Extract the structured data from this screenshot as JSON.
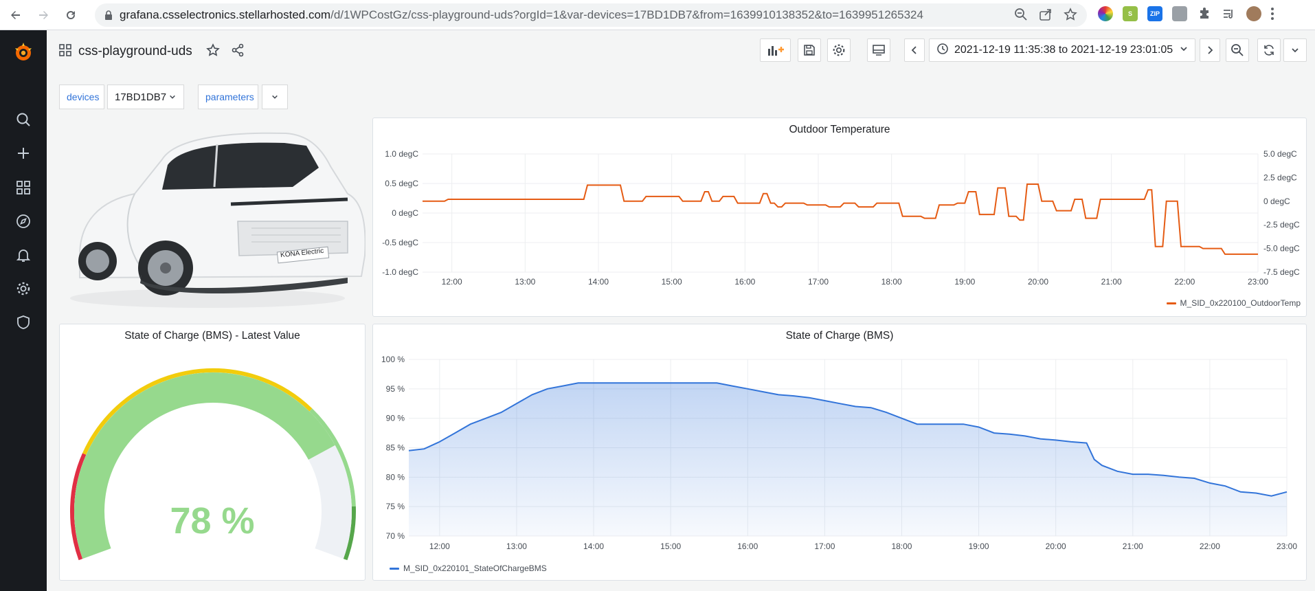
{
  "browser": {
    "url_host": "grafana.csselectronics.stellarhosted.com",
    "url_path": "/d/1WPCostGz/css-playground-uds?orgId=1&var-devices=17BD1DB7&from=1639910138352&to=1639951265324"
  },
  "sidebar": {
    "items": [
      "grafana-logo-icon",
      "search-icon",
      "plus-icon",
      "dashboards-icon",
      "explore-icon",
      "alerting-icon",
      "configuration-icon",
      "shield-icon"
    ]
  },
  "dashboard": {
    "title": "css-playground-uds",
    "time_range": "2021-12-19 11:35:38 to 2021-12-19 23:01:05"
  },
  "variables": {
    "devices_label": "devices",
    "devices_value": "17BD1DB7",
    "parameters_label": "parameters"
  },
  "image_panel": {
    "badge_text": "KONA Electric"
  },
  "colors": {
    "orange": "#e55b13",
    "blue": "#3274d9",
    "green": "#96d98d",
    "yellow": "#f2cc0c",
    "red": "#e02f44",
    "dark_green": "#56a64b"
  },
  "chart_data": [
    {
      "type": "line",
      "title": "Outdoor Temperature",
      "x_ticks": [
        "12:00",
        "13:00",
        "14:00",
        "15:00",
        "16:00",
        "17:00",
        "18:00",
        "19:00",
        "20:00",
        "21:00",
        "22:00",
        "23:00"
      ],
      "y_left_ticks": [
        "1.0 degC",
        "0.5 degC",
        "0 degC",
        "-0.5 degC",
        "-1.0 degC"
      ],
      "y_right_ticks": [
        "5.0 degC",
        "2.5 degC",
        "0 degC",
        "-2.5 degC",
        "-5.0 degC",
        "-7.5 degC"
      ],
      "ylim_right": [
        -7.5,
        5.0
      ],
      "xlim": [
        11.6,
        23.0
      ],
      "series": [
        {
          "name": "M_SID_0x220100_OutdoorTemp",
          "color": "#e55b13",
          "x": [
            11.6,
            11.9,
            11.95,
            12.1,
            13.8,
            13.85,
            14.3,
            14.35,
            14.6,
            14.65,
            15.1,
            15.15,
            15.4,
            15.45,
            15.5,
            15.55,
            15.65,
            15.7,
            15.85,
            15.9,
            16.2,
            16.25,
            16.3,
            16.35,
            16.4,
            16.45,
            16.5,
            16.55,
            16.8,
            16.85,
            17.1,
            17.15,
            17.3,
            17.35,
            17.5,
            17.55,
            17.75,
            17.8,
            18.1,
            18.15,
            18.4,
            18.45,
            18.6,
            18.65,
            18.85,
            18.9,
            19.0,
            19.05,
            19.15,
            19.2,
            19.4,
            19.45,
            19.55,
            19.6,
            19.7,
            19.75,
            19.8,
            19.85,
            20.0,
            20.05,
            20.2,
            20.25,
            20.45,
            20.5,
            20.6,
            20.65,
            20.8,
            20.85,
            21.45,
            21.5,
            21.55,
            21.6,
            21.7,
            21.75,
            21.9,
            21.95,
            22.2,
            22.25,
            22.5,
            22.55,
            23.0
          ],
          "y": [
            0.0,
            0.0,
            0.2,
            0.2,
            0.2,
            1.7,
            1.7,
            0.0,
            0.0,
            0.5,
            0.5,
            0.0,
            0.0,
            1.0,
            1.0,
            0.0,
            0.0,
            0.5,
            0.5,
            -0.2,
            -0.2,
            0.8,
            0.8,
            -0.2,
            -0.2,
            -0.6,
            -0.6,
            -0.2,
            -0.2,
            -0.4,
            -0.4,
            -0.6,
            -0.6,
            -0.2,
            -0.2,
            -0.6,
            -0.6,
            -0.2,
            -0.2,
            -1.6,
            -1.6,
            -1.8,
            -1.8,
            -0.4,
            -0.4,
            -0.2,
            -0.2,
            1.0,
            1.0,
            -1.4,
            -1.4,
            1.4,
            1.4,
            -1.6,
            -1.6,
            -2.0,
            -2.0,
            1.8,
            1.8,
            0.0,
            0.0,
            -1.0,
            -1.0,
            0.2,
            0.2,
            -1.8,
            -1.8,
            0.2,
            0.2,
            1.2,
            1.2,
            -4.8,
            -4.8,
            0.0,
            0.0,
            -4.8,
            -4.8,
            -5.0,
            -5.0,
            -5.6,
            -5.6
          ]
        }
      ]
    },
    {
      "type": "gauge",
      "title": "State of Charge (BMS) - Latest Value",
      "value": 78,
      "display": "78 %",
      "min": 0,
      "max": 100,
      "thresholds": [
        {
          "to": 20,
          "color": "#e02f44"
        },
        {
          "to": 70,
          "color": "#f2cc0c"
        },
        {
          "to": 90,
          "color": "#96d98d"
        },
        {
          "to": 100,
          "color": "#56a64b"
        }
      ]
    },
    {
      "type": "area",
      "title": "State of Charge (BMS)",
      "x_ticks": [
        "12:00",
        "13:00",
        "14:00",
        "15:00",
        "16:00",
        "17:00",
        "18:00",
        "19:00",
        "20:00",
        "21:00",
        "22:00",
        "23:00"
      ],
      "y_ticks": [
        "100 %",
        "95 %",
        "90 %",
        "85 %",
        "80 %",
        "75 %",
        "70 %"
      ],
      "ylim": [
        70,
        100
      ],
      "xlim": [
        11.6,
        23.0
      ],
      "series": [
        {
          "name": "M_SID_0x220101_StateOfChargeBMS",
          "color": "#3274d9",
          "x": [
            11.6,
            11.8,
            12.0,
            12.2,
            12.4,
            12.6,
            12.8,
            13.0,
            13.2,
            13.4,
            13.6,
            13.8,
            14.0,
            14.5,
            15.0,
            15.3,
            15.6,
            15.8,
            16.0,
            16.2,
            16.4,
            16.6,
            16.8,
            17.0,
            17.2,
            17.4,
            17.6,
            17.8,
            18.0,
            18.2,
            18.4,
            18.6,
            18.8,
            19.0,
            19.2,
            19.4,
            19.6,
            19.8,
            20.0,
            20.2,
            20.4,
            20.5,
            20.6,
            20.8,
            21.0,
            21.2,
            21.4,
            21.6,
            21.8,
            22.0,
            22.2,
            22.4,
            22.6,
            22.8,
            23.0
          ],
          "y": [
            84.5,
            84.8,
            86.0,
            87.5,
            89.0,
            90.0,
            91.0,
            92.5,
            94.0,
            95.0,
            95.5,
            96.0,
            96.0,
            96.0,
            96.0,
            96.0,
            96.0,
            95.5,
            95.0,
            94.5,
            94.0,
            93.8,
            93.5,
            93.0,
            92.5,
            92.0,
            91.8,
            91.0,
            90.0,
            89.0,
            89.0,
            89.0,
            89.0,
            88.5,
            87.5,
            87.3,
            87.0,
            86.5,
            86.3,
            86.0,
            85.8,
            83.0,
            82.0,
            81.0,
            80.5,
            80.5,
            80.3,
            80.0,
            79.8,
            79.0,
            78.5,
            77.5,
            77.3,
            76.8,
            77.5
          ]
        }
      ]
    }
  ]
}
